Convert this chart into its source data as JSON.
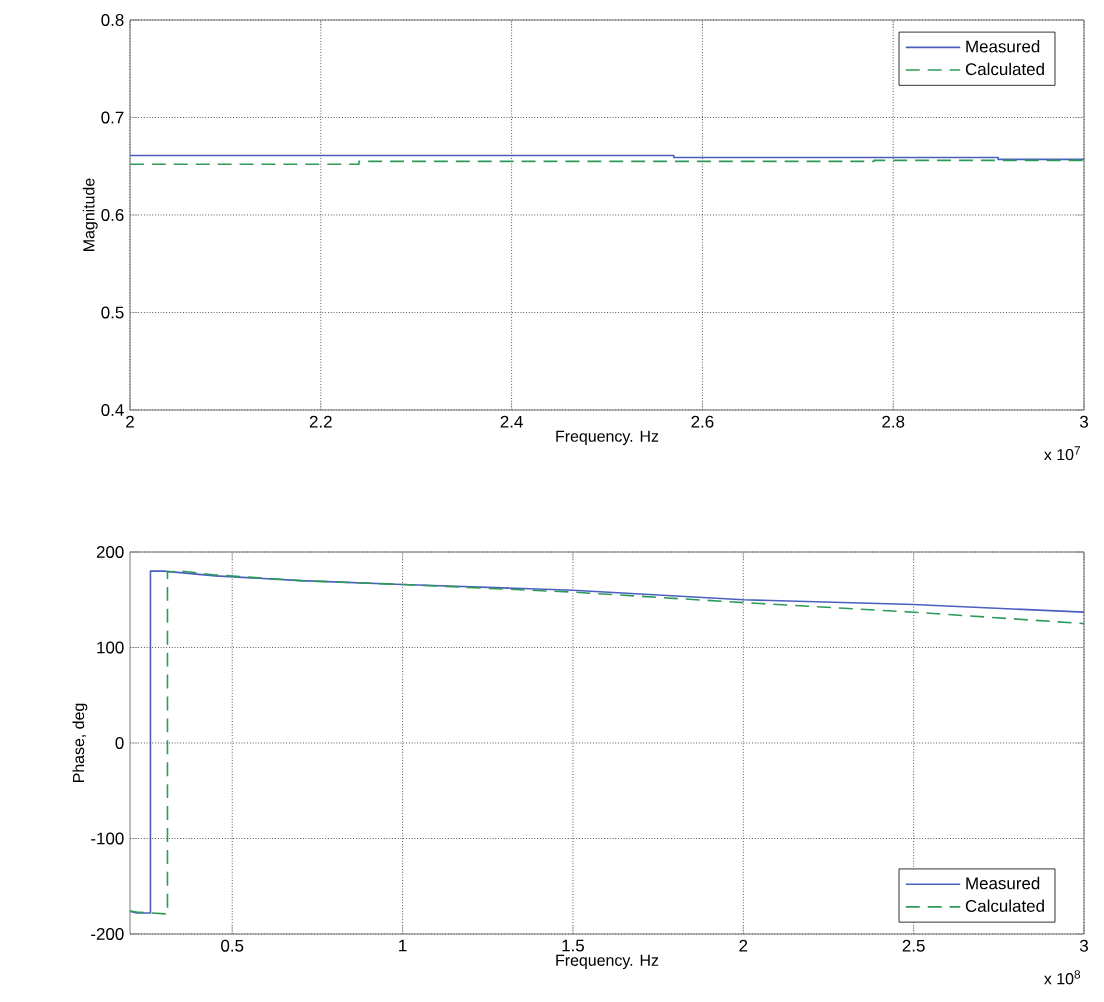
{
  "chart_data": [
    {
      "type": "line",
      "xlabel": "Frequency. Hz",
      "ylabel": "Magnitude",
      "annotations": [
        "x 10$^{7}$"
      ],
      "xlim": [
        2,
        3
      ],
      "ylim": [
        0.4,
        0.8
      ],
      "xticks": [
        2,
        2.2,
        2.4,
        2.6,
        2.8,
        3
      ],
      "yticks": [
        0.4,
        0.5,
        0.6,
        0.7,
        0.8
      ],
      "grid": true,
      "legend": "top right",
      "series": [
        {
          "name": "Measured",
          "color": "#4a5fc0",
          "line_style": "solid",
          "x": [
            2,
            2.57,
            2.57,
            2.91,
            2.91,
            3
          ],
          "values": [
            0.661,
            0.661,
            0.659,
            0.659,
            0.657,
            0.657
          ]
        },
        {
          "name": "Calculated",
          "color": "#2e9a5a",
          "line_style": "dashed",
          "x": [
            2,
            2.24,
            2.24,
            2.78,
            2.78,
            3
          ],
          "values": [
            0.652,
            0.652,
            0.655,
            0.655,
            0.656,
            0.656
          ]
        }
      ]
    },
    {
      "type": "line",
      "xlabel": "Frequency. Hz",
      "ylabel": "Phase, deg",
      "annotations": [
        "x 10$^{8}$"
      ],
      "xlim": [
        0.2,
        3
      ],
      "ylim": [
        -200,
        200
      ],
      "xticks": [
        0.5,
        1,
        1.5,
        2,
        2.5,
        3
      ],
      "yticks": [
        -200,
        -100,
        0,
        100,
        200
      ],
      "grid": true,
      "legend": "bottom right",
      "series": [
        {
          "name": "Measured",
          "color": "#4a5fc0",
          "line_style": "solid",
          "x": [
            0.2,
            0.22,
            0.26,
            0.26,
            0.3,
            0.45,
            0.7,
            1,
            1.5,
            2,
            2.5,
            3
          ],
          "values": [
            -176,
            -178,
            -178,
            180,
            180,
            175,
            170,
            166,
            160,
            150,
            145,
            137
          ]
        },
        {
          "name": "Calculated",
          "color": "#2e9a5a",
          "line_style": "dashed",
          "x": [
            0.2,
            0.22,
            0.31,
            0.31,
            0.35,
            0.45,
            0.7,
            1,
            1.5,
            2,
            2.5,
            3
          ],
          "values": [
            -176,
            -177,
            -179,
            179,
            180,
            176,
            170,
            166,
            158,
            147,
            137,
            125
          ]
        }
      ]
    }
  ]
}
